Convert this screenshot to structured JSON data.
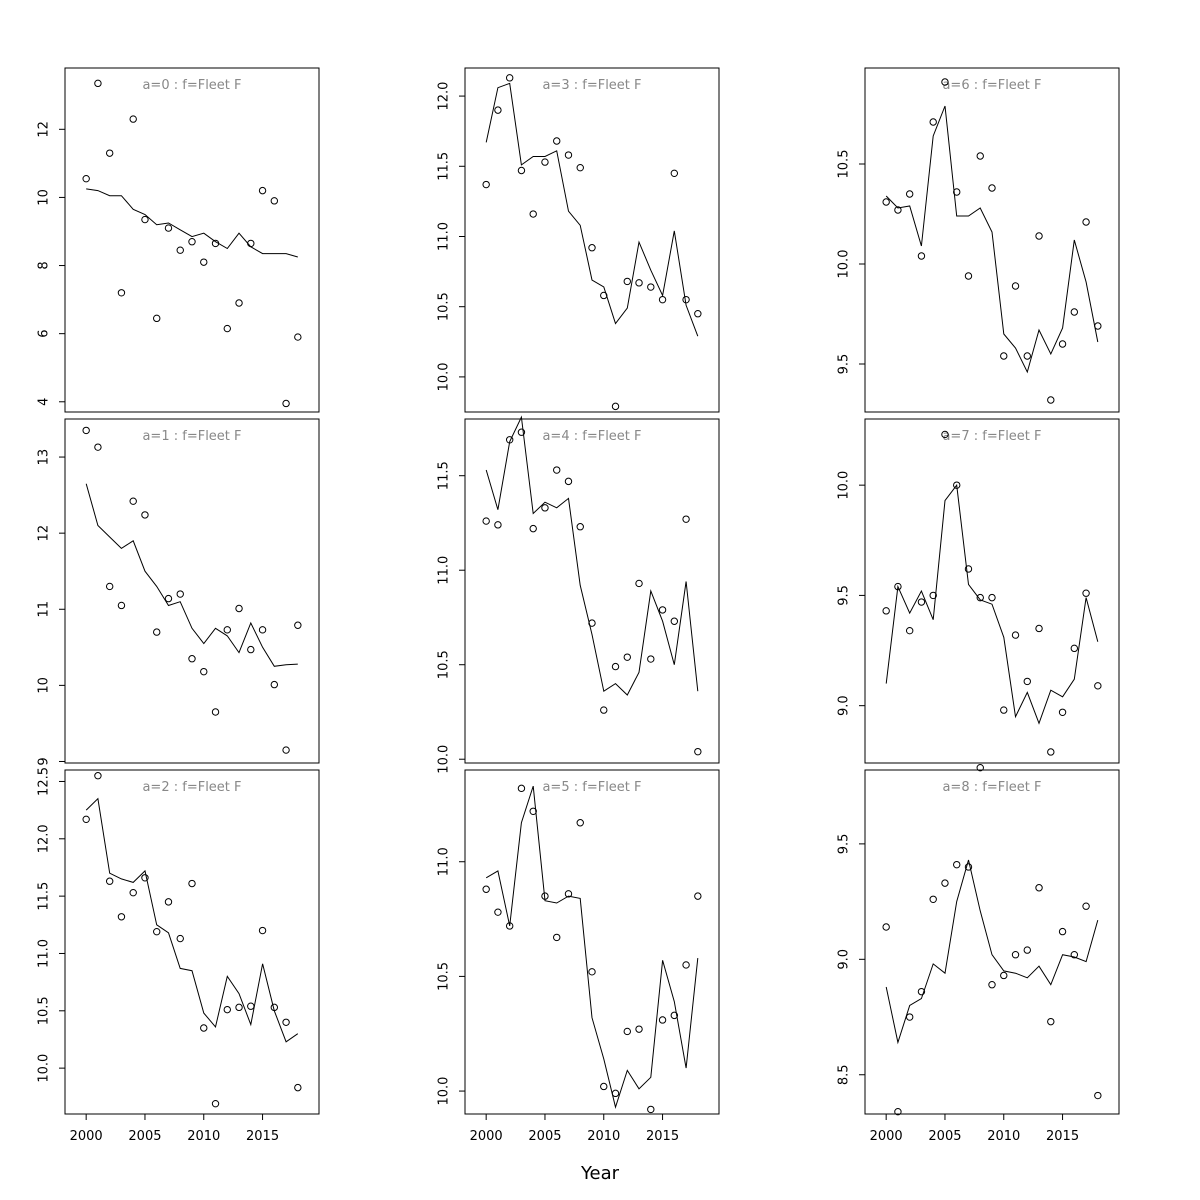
{
  "xlabel": "Year",
  "chart_data": [
    {
      "type": "scatter+line",
      "title": "a=0 : f=Fleet F",
      "years": [
        2000,
        2001,
        2002,
        2003,
        2004,
        2005,
        2006,
        2007,
        2008,
        2009,
        2010,
        2011,
        2012,
        2013,
        2014,
        2015,
        2016,
        2017,
        2018
      ],
      "observed": [
        10.55,
        13.35,
        11.3,
        7.2,
        12.3,
        9.35,
        6.45,
        9.1,
        8.45,
        8.7,
        8.1,
        8.65,
        6.15,
        6.9,
        8.65,
        10.2,
        9.9,
        3.95,
        5.9
      ],
      "fitted": [
        10.25,
        10.2,
        10.05,
        10.05,
        9.65,
        9.5,
        9.2,
        9.25,
        9.05,
        8.85,
        8.95,
        8.7,
        8.5,
        8.95,
        8.55,
        8.35,
        8.35,
        8.35,
        8.25
      ],
      "ylim": [
        3.7,
        13.8
      ],
      "yticks": [
        4,
        6,
        8,
        10,
        12
      ]
    },
    {
      "type": "scatter+line",
      "title": "a=3 : f=Fleet F",
      "years": [
        2000,
        2001,
        2002,
        2003,
        2004,
        2005,
        2006,
        2007,
        2008,
        2009,
        2010,
        2011,
        2012,
        2013,
        2014,
        2015,
        2016,
        2017,
        2018
      ],
      "observed": [
        11.37,
        11.9,
        12.13,
        11.47,
        11.16,
        11.53,
        11.68,
        11.58,
        11.49,
        10.92,
        10.58,
        9.79,
        10.68,
        10.67,
        10.64,
        10.55,
        11.45,
        10.55,
        10.45
      ],
      "fitted": [
        11.67,
        12.06,
        12.09,
        11.51,
        11.57,
        11.57,
        11.61,
        11.18,
        11.08,
        10.69,
        10.64,
        10.38,
        10.49,
        10.96,
        10.76,
        10.58,
        11.04,
        10.51,
        10.29
      ],
      "ylim": [
        9.75,
        12.2
      ],
      "yticks": [
        10.0,
        10.5,
        11.0,
        11.5,
        12.0
      ]
    },
    {
      "type": "scatter+line",
      "title": "a=6 : f=Fleet F",
      "years": [
        2000,
        2001,
        2002,
        2003,
        2004,
        2005,
        2006,
        2007,
        2008,
        2009,
        2010,
        2011,
        2012,
        2013,
        2014,
        2015,
        2016,
        2017,
        2018
      ],
      "observed": [
        10.31,
        10.27,
        10.35,
        10.04,
        10.71,
        10.91,
        10.36,
        9.94,
        10.54,
        10.38,
        9.54,
        9.89,
        9.54,
        10.14,
        9.32,
        9.6,
        9.76,
        10.21,
        9.69
      ],
      "fitted": [
        10.34,
        10.28,
        10.29,
        10.09,
        10.64,
        10.79,
        10.24,
        10.24,
        10.28,
        10.16,
        9.65,
        9.58,
        9.46,
        9.67,
        9.55,
        9.68,
        10.12,
        9.91,
        9.61
      ],
      "ylim": [
        9.26,
        10.98
      ],
      "yticks": [
        9.5,
        10.0,
        10.5
      ]
    },
    {
      "type": "scatter+line",
      "title": "a=1 : f=Fleet F",
      "years": [
        2000,
        2001,
        2002,
        2003,
        2004,
        2005,
        2006,
        2007,
        2008,
        2009,
        2010,
        2011,
        2012,
        2013,
        2014,
        2015,
        2016,
        2017,
        2018
      ],
      "observed": [
        13.35,
        13.13,
        11.3,
        11.05,
        12.42,
        12.24,
        10.7,
        11.14,
        11.2,
        10.35,
        10.18,
        9.65,
        10.73,
        11.01,
        10.47,
        10.73,
        10.01,
        9.15,
        10.79
      ],
      "fitted": [
        12.65,
        12.1,
        11.95,
        11.8,
        11.9,
        11.5,
        11.3,
        11.05,
        11.1,
        10.75,
        10.55,
        10.75,
        10.65,
        10.43,
        10.82,
        10.5,
        10.25,
        10.27,
        10.28
      ],
      "ylim": [
        8.98,
        13.5
      ],
      "yticks": [
        9,
        10,
        11,
        12,
        13
      ]
    },
    {
      "type": "scatter+line",
      "title": "a=4 : f=Fleet F",
      "years": [
        2000,
        2001,
        2002,
        2003,
        2004,
        2005,
        2006,
        2007,
        2008,
        2009,
        2010,
        2011,
        2012,
        2013,
        2014,
        2015,
        2016,
        2017,
        2018
      ],
      "observed": [
        11.26,
        11.24,
        11.69,
        11.73,
        11.22,
        11.33,
        11.53,
        11.47,
        11.23,
        10.72,
        10.26,
        10.49,
        10.54,
        10.93,
        10.53,
        10.79,
        10.73,
        11.27,
        10.04
      ],
      "fitted": [
        11.53,
        11.32,
        11.68,
        11.81,
        11.3,
        11.36,
        11.33,
        11.38,
        10.92,
        10.66,
        10.36,
        10.4,
        10.34,
        10.46,
        10.89,
        10.73,
        10.5,
        10.94,
        10.36
      ],
      "ylim": [
        9.98,
        11.8
      ],
      "yticks": [
        10.0,
        10.5,
        11.0,
        11.5
      ]
    },
    {
      "type": "scatter+line",
      "title": "a=7 : f=Fleet F",
      "years": [
        2000,
        2001,
        2002,
        2003,
        2004,
        2005,
        2006,
        2007,
        2008,
        2009,
        2010,
        2011,
        2012,
        2013,
        2014,
        2015,
        2016,
        2017,
        2018
      ],
      "observed": [
        9.43,
        9.54,
        9.34,
        9.47,
        9.5,
        10.23,
        10.0,
        9.62,
        9.49,
        9.49,
        8.98,
        9.32,
        9.11,
        9.35,
        8.79,
        8.97,
        9.26,
        9.51,
        9.09
      ],
      "fitted": [
        9.1,
        9.54,
        9.42,
        9.52,
        9.39,
        9.93,
        10.0,
        9.55,
        9.48,
        9.46,
        9.31,
        8.95,
        9.06,
        8.92,
        9.07,
        9.04,
        9.12,
        9.49,
        9.29
      ],
      "ylim": [
        8.74,
        10.3
      ],
      "yticks": [
        9.0,
        9.5,
        10.0
      ]
    },
    {
      "type": "scatter+line",
      "title": "a=2 : f=Fleet F",
      "years": [
        2000,
        2001,
        2002,
        2003,
        2004,
        2005,
        2006,
        2007,
        2008,
        2009,
        2010,
        2011,
        2012,
        2013,
        2014,
        2015,
        2016,
        2017,
        2018
      ],
      "observed": [
        12.17,
        12.55,
        11.63,
        11.32,
        11.53,
        11.66,
        11.19,
        11.45,
        11.13,
        11.61,
        10.35,
        9.69,
        10.51,
        10.53,
        10.54,
        11.2,
        10.53,
        10.4,
        9.83
      ],
      "fitted": [
        12.25,
        12.35,
        11.7,
        11.65,
        11.62,
        11.72,
        11.25,
        11.18,
        10.87,
        10.85,
        10.48,
        10.36,
        10.8,
        10.65,
        10.38,
        10.91,
        10.5,
        10.23,
        10.3
      ],
      "ylim": [
        9.6,
        12.6
      ],
      "yticks": [
        10.0,
        10.5,
        11.0,
        11.5,
        12.0,
        12.5
      ]
    },
    {
      "type": "scatter+line",
      "title": "a=5 : f=Fleet F",
      "years": [
        2000,
        2001,
        2002,
        2003,
        2004,
        2005,
        2006,
        2007,
        2008,
        2009,
        2010,
        2011,
        2012,
        2013,
        2014,
        2015,
        2016,
        2017,
        2018
      ],
      "observed": [
        10.88,
        10.78,
        10.72,
        11.32,
        11.22,
        10.85,
        10.67,
        10.86,
        11.17,
        10.52,
        10.02,
        9.99,
        10.26,
        10.27,
        9.92,
        10.31,
        10.33,
        10.55,
        10.85
      ],
      "fitted": [
        10.93,
        10.96,
        10.72,
        11.17,
        11.33,
        10.83,
        10.82,
        10.85,
        10.84,
        10.32,
        10.14,
        9.93,
        10.09,
        10.01,
        10.06,
        10.57,
        10.39,
        10.1,
        10.58
      ],
      "ylim": [
        9.9,
        11.4
      ],
      "yticks": [
        10.0,
        10.5,
        11.0
      ]
    },
    {
      "type": "scatter+line",
      "title": "a=8 : f=Fleet F",
      "years": [
        2000,
        2001,
        2002,
        2003,
        2004,
        2005,
        2006,
        2007,
        2008,
        2009,
        2010,
        2011,
        2012,
        2013,
        2014,
        2015,
        2016,
        2017,
        2018
      ],
      "observed": [
        9.14,
        8.34,
        8.75,
        8.86,
        9.26,
        9.33,
        9.41,
        9.4,
        9.83,
        8.89,
        8.93,
        9.02,
        9.04,
        9.31,
        8.73,
        9.12,
        9.02,
        9.23,
        8.41
      ],
      "fitted": [
        8.88,
        8.64,
        8.8,
        8.83,
        8.98,
        8.94,
        9.25,
        9.43,
        9.21,
        9.02,
        8.95,
        8.94,
        8.92,
        8.97,
        8.89,
        9.02,
        9.01,
        8.99,
        9.17
      ],
      "ylim": [
        8.33,
        9.82
      ],
      "yticks": [
        8.5,
        9.0,
        9.5
      ]
    }
  ],
  "xticks": [
    2000,
    2005,
    2010,
    2015
  ],
  "xlim": [
    1998.2,
    2019.8
  ]
}
